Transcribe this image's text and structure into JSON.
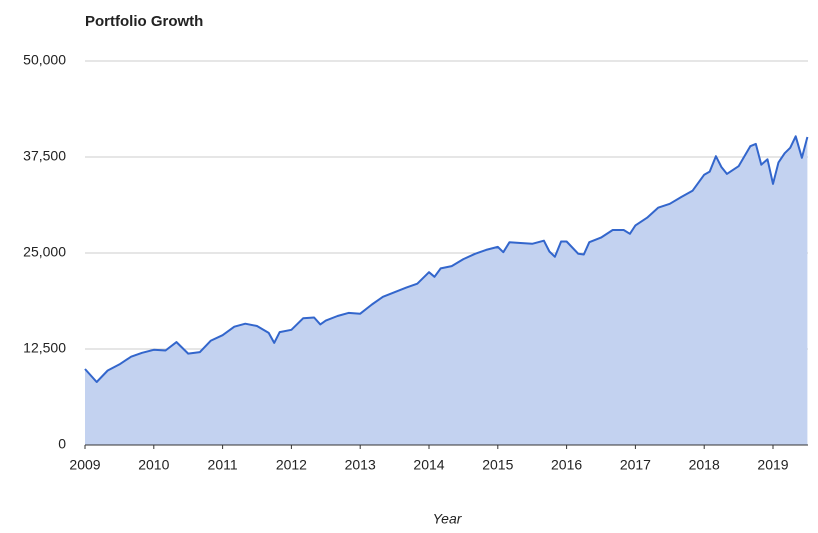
{
  "chart_data": {
    "type": "area",
    "title": "Portfolio Growth",
    "x_label": "Year",
    "x": [
      2009.0,
      2009.17,
      2009.33,
      2009.5,
      2009.67,
      2009.83,
      2010.0,
      2010.17,
      2010.33,
      2010.5,
      2010.67,
      2010.83,
      2011.0,
      2011.17,
      2011.33,
      2011.5,
      2011.67,
      2011.75,
      2011.83,
      2012.0,
      2012.17,
      2012.33,
      2012.42,
      2012.5,
      2012.67,
      2012.83,
      2013.0,
      2013.17,
      2013.33,
      2013.5,
      2013.67,
      2013.83,
      2014.0,
      2014.08,
      2014.17,
      2014.33,
      2014.5,
      2014.67,
      2014.83,
      2015.0,
      2015.08,
      2015.17,
      2015.33,
      2015.5,
      2015.67,
      2015.75,
      2015.83,
      2015.92,
      2016.0,
      2016.17,
      2016.25,
      2016.33,
      2016.5,
      2016.67,
      2016.83,
      2016.92,
      2017.0,
      2017.17,
      2017.33,
      2017.5,
      2017.67,
      2017.83,
      2018.0,
      2018.08,
      2018.17,
      2018.25,
      2018.33,
      2018.5,
      2018.67,
      2018.75,
      2018.83,
      2018.92,
      2019.0,
      2019.08,
      2019.17,
      2019.25,
      2019.33,
      2019.42,
      2019.5
    ],
    "series": [
      {
        "color": "#3366cc",
        "fill": "#c3d2f0",
        "values": [
          9900,
          8200,
          9700,
          10500,
          11500,
          12000,
          12400,
          12300,
          13400,
          11900,
          12100,
          13600,
          14300,
          15400,
          15800,
          15500,
          14600,
          13300,
          14700,
          15000,
          16500,
          16600,
          15700,
          16200,
          16800,
          17200,
          17100,
          18300,
          19300,
          19900,
          20500,
          21000,
          22500,
          21900,
          23000,
          23300,
          24200,
          24900,
          25400,
          25800,
          25100,
          26400,
          26300,
          26200,
          26600,
          25200,
          24500,
          26500,
          26500,
          24900,
          24800,
          26400,
          27000,
          28000,
          28000,
          27500,
          28600,
          29600,
          30900,
          31400,
          32300,
          33100,
          35200,
          35600,
          37600,
          36200,
          35300,
          36300,
          38900,
          39200,
          36500,
          37200,
          34000,
          36800,
          38000,
          38700,
          40200,
          37400,
          40100
        ]
      }
    ],
    "xlim": [
      2009,
      2019.5
    ],
    "xticks": [
      2009,
      2010,
      2011,
      2012,
      2013,
      2014,
      2015,
      2016,
      2017,
      2018,
      2019
    ],
    "ylim": [
      0,
      50000
    ],
    "yticks": [
      0,
      {
        "value": 12500,
        "label": "12,500"
      },
      {
        "value": 25000,
        "label": "25,000"
      },
      {
        "value": 37500,
        "label": "37,500"
      },
      {
        "value": 50000,
        "label": "50,000"
      }
    ],
    "grid": true
  }
}
